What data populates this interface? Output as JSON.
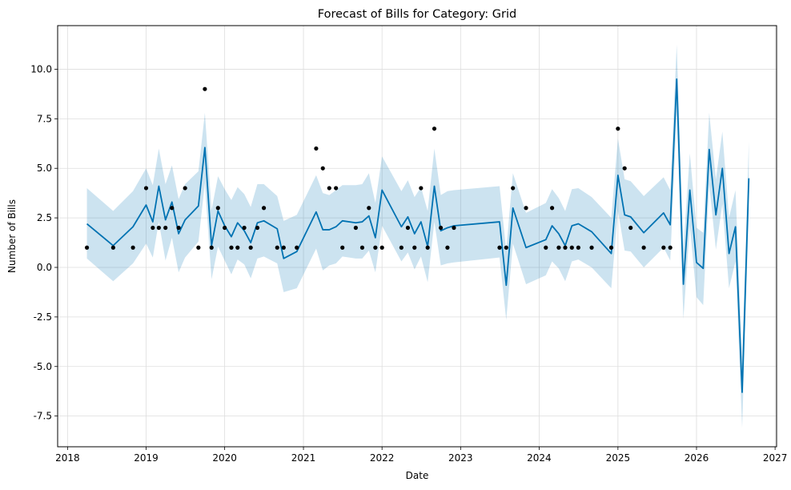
{
  "chart_data": {
    "type": "line",
    "title": "Forecast of Bills for Category: Grid",
    "xlabel": "Date",
    "ylabel": "Number of Bills",
    "x_range": [
      "2017-11-16",
      "2027-01-08"
    ],
    "ylim": [
      -9.05,
      12.2
    ],
    "grid": true,
    "x_ticks": [
      "2018",
      "2019",
      "2020",
      "2021",
      "2022",
      "2023",
      "2024",
      "2025",
      "2026",
      "2027"
    ],
    "y_ticks": [
      "-7.5",
      "-5.0",
      "-2.5",
      "0.0",
      "2.5",
      "5.0",
      "7.5",
      "10.0"
    ],
    "colors": {
      "line": "#0072B2",
      "band": "#0072B2",
      "points": "#000000",
      "grid": "#dddddd"
    },
    "observed": {
      "x": [
        "2018-04-01",
        "2018-08-01",
        "2018-11-01",
        "2019-01-01",
        "2019-02-01",
        "2019-03-01",
        "2019-04-01",
        "2019-05-01",
        "2019-06-01",
        "2019-07-01",
        "2019-09-01",
        "2019-10-01",
        "2019-11-01",
        "2019-12-01",
        "2020-01-01",
        "2020-02-01",
        "2020-03-01",
        "2020-04-01",
        "2020-05-01",
        "2020-06-01",
        "2020-07-01",
        "2020-09-01",
        "2020-10-01",
        "2020-12-01",
        "2021-03-01",
        "2021-04-01",
        "2021-05-01",
        "2021-06-01",
        "2021-07-01",
        "2021-09-01",
        "2021-10-01",
        "2021-11-01",
        "2021-12-01",
        "2022-01-01",
        "2022-04-01",
        "2022-05-01",
        "2022-06-01",
        "2022-07-01",
        "2022-08-01",
        "2022-09-01",
        "2022-10-01",
        "2022-11-01",
        "2022-12-01",
        "2023-07-01",
        "2023-08-01",
        "2023-09-01",
        "2023-11-01",
        "2024-02-01",
        "2024-03-01",
        "2024-04-01",
        "2024-05-01",
        "2024-06-01",
        "2024-07-01",
        "2024-09-01",
        "2024-12-01",
        "2025-01-01",
        "2025-02-01",
        "2025-03-01",
        "2025-05-01",
        "2025-08-01",
        "2025-09-01"
      ],
      "y": [
        1,
        1,
        1,
        4,
        2,
        2,
        2,
        3,
        2,
        4,
        1,
        9,
        1,
        3,
        2,
        1,
        1,
        2,
        1,
        2,
        3,
        1,
        1,
        1,
        6,
        5,
        4,
        4,
        1,
        2,
        1,
        3,
        1,
        1,
        1,
        2,
        1,
        4,
        1,
        7,
        2,
        1,
        2,
        1,
        1,
        4,
        3,
        1,
        3,
        1,
        1,
        1,
        1,
        1,
        1,
        7,
        5,
        2,
        1,
        1,
        1
      ]
    },
    "forecast": {
      "x": [
        "2018-04-01",
        "2018-08-01",
        "2018-11-01",
        "2019-01-01",
        "2019-02-01",
        "2019-03-01",
        "2019-04-01",
        "2019-05-01",
        "2019-06-01",
        "2019-07-01",
        "2019-09-01",
        "2019-10-01",
        "2019-11-01",
        "2019-12-01",
        "2020-01-01",
        "2020-02-01",
        "2020-03-01",
        "2020-04-01",
        "2020-05-01",
        "2020-06-01",
        "2020-07-01",
        "2020-09-01",
        "2020-10-01",
        "2020-12-01",
        "2021-03-01",
        "2021-04-01",
        "2021-05-01",
        "2021-06-01",
        "2021-07-01",
        "2021-09-01",
        "2021-10-01",
        "2021-11-01",
        "2021-12-01",
        "2022-01-01",
        "2022-04-01",
        "2022-05-01",
        "2022-06-01",
        "2022-07-01",
        "2022-08-01",
        "2022-09-01",
        "2022-10-01",
        "2022-11-01",
        "2022-12-01",
        "2023-07-01",
        "2023-08-01",
        "2023-09-01",
        "2023-11-01",
        "2024-02-01",
        "2024-03-01",
        "2024-04-01",
        "2024-05-01",
        "2024-06-01",
        "2024-07-01",
        "2024-09-01",
        "2024-12-01",
        "2025-01-01",
        "2025-02-01",
        "2025-03-01",
        "2025-05-01",
        "2025-08-01",
        "2025-09-01",
        "2025-10-01",
        "2025-11-01",
        "2025-12-01",
        "2026-01-01",
        "2026-02-01",
        "2026-03-01",
        "2026-04-01",
        "2026-05-01",
        "2026-06-01",
        "2026-07-01",
        "2026-08-01",
        "2026-09-01"
      ],
      "yhat": [
        2.2,
        1.1,
        2.05,
        3.15,
        2.3,
        4.1,
        2.4,
        3.3,
        1.7,
        2.4,
        3.1,
        6.05,
        1.1,
        2.85,
        2.1,
        1.55,
        2.25,
        1.85,
        1.25,
        2.25,
        2.35,
        1.95,
        0.45,
        0.8,
        2.8,
        1.9,
        1.9,
        2.05,
        2.35,
        2.25,
        2.3,
        2.6,
        1.5,
        3.9,
        2.05,
        2.55,
        1.7,
        2.3,
        1.05,
        4.1,
        1.85,
        2.0,
        2.1,
        2.3,
        -0.9,
        3.0,
        1.0,
        1.4,
        2.1,
        1.7,
        1.1,
        2.1,
        2.2,
        1.8,
        0.7,
        4.65,
        2.65,
        2.55,
        1.75,
        2.75,
        2.15,
        9.5,
        -0.85,
        3.9,
        0.25,
        -0.05,
        5.95,
        2.65,
        5.0,
        0.7,
        2.05,
        -6.3,
        4.5
      ],
      "lower": [
        0.45,
        -0.7,
        0.2,
        1.2,
        0.5,
        2.3,
        0.35,
        1.5,
        -0.25,
        0.5,
        1.3,
        4.25,
        -0.6,
        1.05,
        0.35,
        -0.35,
        0.4,
        0.15,
        -0.55,
        0.45,
        0.55,
        0.2,
        -1.25,
        -1.05,
        0.95,
        -0.15,
        0.1,
        0.2,
        0.55,
        0.45,
        0.45,
        0.85,
        -0.25,
        2.1,
        0.3,
        0.75,
        -0.1,
        0.55,
        -0.75,
        2.3,
        0.1,
        0.2,
        0.25,
        0.5,
        -2.65,
        1.2,
        -0.85,
        -0.4,
        0.3,
        -0.05,
        -0.7,
        0.3,
        0.4,
        0.0,
        -1.05,
        2.85,
        0.85,
        0.8,
        0.0,
        1.0,
        0.35,
        7.7,
        -2.6,
        2.1,
        -1.5,
        -1.9,
        4.2,
        0.9,
        3.2,
        -1.05,
        0.3,
        -8.1,
        2.7
      ],
      "upper": [
        4.0,
        2.85,
        3.85,
        5.0,
        4.15,
        6.0,
        4.2,
        5.15,
        3.45,
        4.2,
        4.85,
        7.8,
        2.9,
        4.6,
        3.95,
        3.4,
        4.05,
        3.7,
        3.05,
        4.2,
        4.2,
        3.6,
        2.35,
        2.65,
        4.65,
        3.75,
        3.65,
        3.9,
        4.15,
        4.15,
        4.2,
        4.75,
        3.25,
        5.6,
        3.85,
        4.4,
        3.55,
        4.05,
        2.85,
        6.0,
        3.65,
        3.85,
        3.9,
        4.1,
        0.85,
        4.75,
        2.75,
        3.25,
        3.95,
        3.5,
        2.85,
        3.95,
        4.0,
        3.55,
        2.5,
        6.5,
        4.45,
        4.35,
        3.6,
        4.55,
        3.9,
        11.25,
        0.95,
        5.75,
        2.0,
        1.75,
        7.8,
        4.45,
        6.85,
        2.5,
        3.9,
        -4.5,
        6.35
      ]
    }
  }
}
